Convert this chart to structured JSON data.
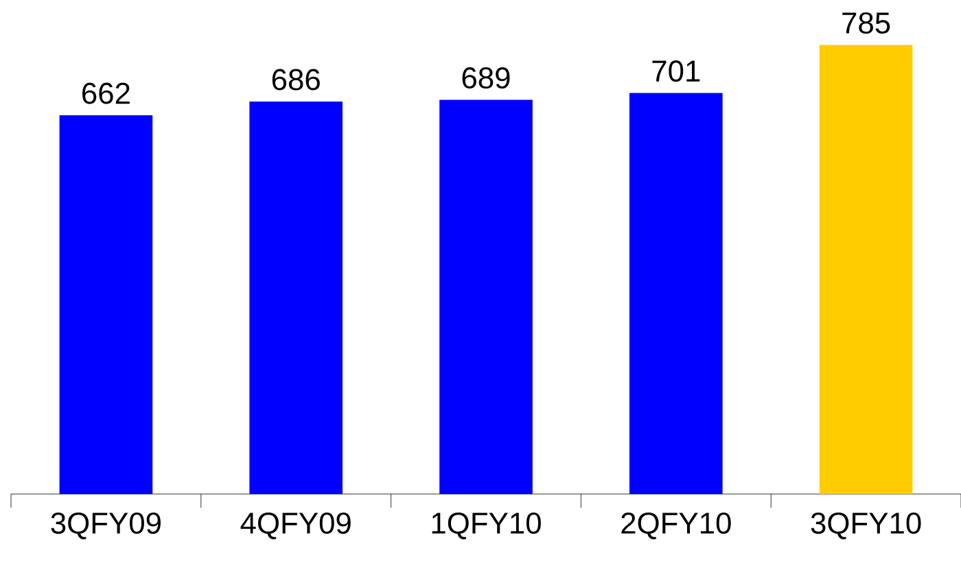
{
  "chart_data": {
    "type": "bar",
    "categories": [
      "3QFY09",
      "4QFY09",
      "1QFY10",
      "2QFY10",
      "3QFY10"
    ],
    "values": [
      662,
      686,
      689,
      701,
      785
    ],
    "colors": [
      "#0000ff",
      "#0000ff",
      "#0000ff",
      "#0000ff",
      "#ffcc00"
    ],
    "data_labels": true
  }
}
